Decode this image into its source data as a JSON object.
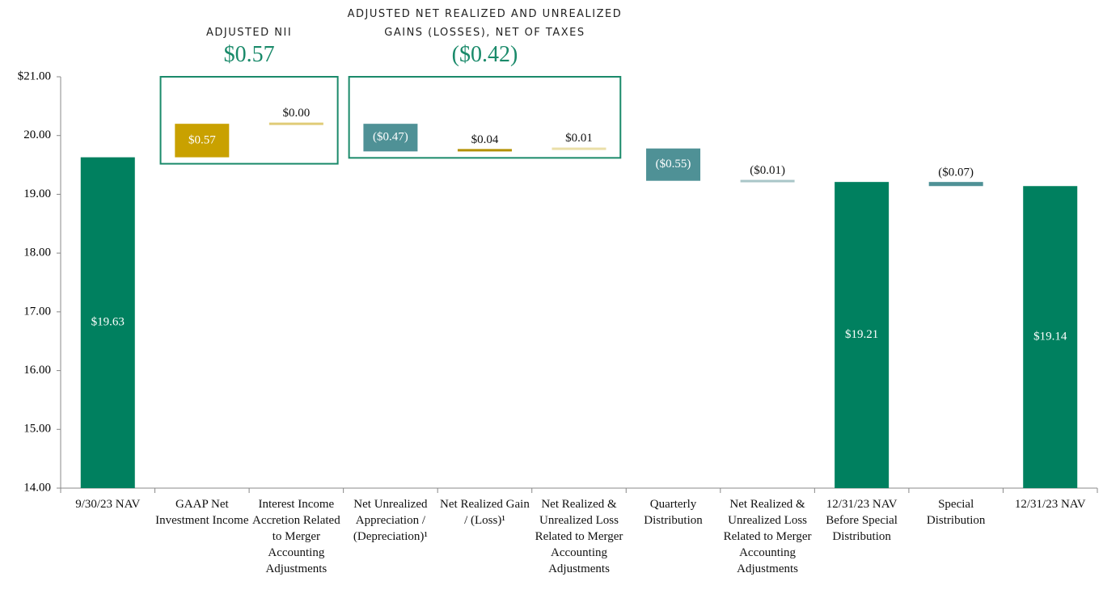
{
  "chart_data": {
    "type": "waterfall",
    "categories": [
      "9/30/23 NAV",
      "GAAP Net Investment Income",
      "Interest Income Accretion Related to Merger Accounting Adjustments",
      "Net Unrealized Appreciation / (Depreciation)¹",
      "Net Realized Gain / (Loss)¹",
      "Net Realized & Unrealized Loss Related to Merger Accounting Adjustments",
      "Quarterly Distribution",
      "Net Realized & Unrealized Loss Related to Merger Accounting Adjustments",
      "12/31/23 NAV Before Special Distribution",
      "Special Distribution",
      "12/31/23 NAV"
    ],
    "values": [
      19.63,
      0.57,
      0.0,
      -0.47,
      0.04,
      0.01,
      -0.55,
      -0.01,
      19.21,
      -0.07,
      19.14
    ],
    "value_labels": [
      "$19.63",
      "$0.57",
      "$0.00",
      "($0.47)",
      "$0.04",
      "$0.01",
      "($0.55)",
      "($0.01)",
      "$19.21",
      "($0.07)",
      "$19.14"
    ],
    "is_total": [
      true,
      false,
      false,
      false,
      false,
      false,
      false,
      false,
      true,
      false,
      true
    ],
    "colors": [
      "#00805f",
      "#c9a100",
      "#e0cc78",
      "#4f9196",
      "#b39000",
      "#eadfa8",
      "#4f9196",
      "#a9c6c8",
      "#00805f",
      "#4f9196",
      "#00805f"
    ],
    "ylim": [
      14,
      21
    ],
    "yticks": [
      {
        "value": 14,
        "label": "14.00"
      },
      {
        "value": 15,
        "label": "15.00"
      },
      {
        "value": 16,
        "label": "16.00"
      },
      {
        "value": 17,
        "label": "17.00"
      },
      {
        "value": 18,
        "label": "18.00"
      },
      {
        "value": 19,
        "label": "19.00"
      },
      {
        "value": 20,
        "label": "20.00"
      },
      {
        "value": 21,
        "label": "$21.00"
      }
    ],
    "groups": [
      {
        "title": "ADJUSTED NII",
        "label": "$0.57",
        "span": [
          1,
          2
        ]
      },
      {
        "title": "ADJUSTED NET REALIZED AND UNREALIZED GAINS (LOSSES), NET OF TAXES",
        "label": "($0.42)",
        "span": [
          3,
          5
        ]
      }
    ]
  }
}
